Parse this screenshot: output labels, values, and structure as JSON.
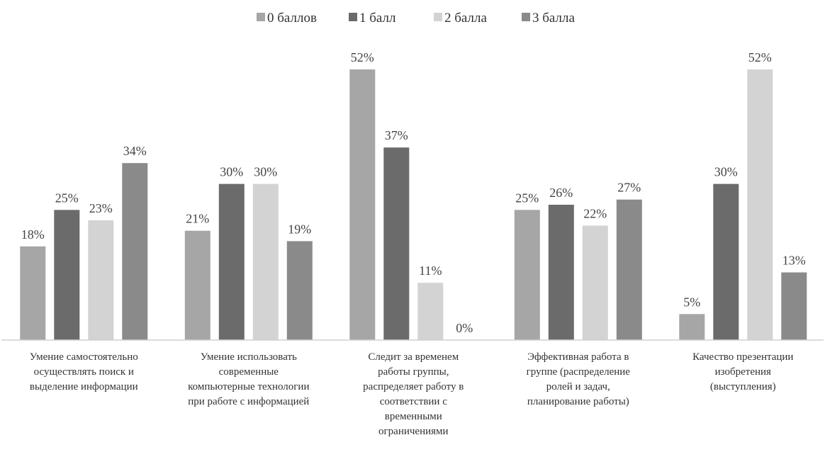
{
  "chart_data": {
    "type": "bar",
    "categories": [
      "Умение самостоятельно осуществлять поиск и выделение информации",
      "Умение использовать современные компьютерные технологии при работе с информацией",
      "Следит за временем работы группы, распределяет работу в соответствии с временными ограничениями",
      "Эффективная работа в группе (распределение ролей и задач, планирование работы)",
      "Качество презентации изобретения (выступления)"
    ],
    "category_lines": [
      [
        "Умение самостоятельно",
        "осуществлять поиск и",
        "выделение информации"
      ],
      [
        "Умение использовать",
        "современные",
        "компьютерные технологии",
        "при работе с информацией"
      ],
      [
        "Следит за временем",
        "работы группы,",
        "распределяет работу в",
        "соответствии с",
        "временными",
        "ограничениями"
      ],
      [
        "Эффективная работа в",
        "группе (распределение",
        "ролей и задач,",
        "планирование работы)"
      ],
      [
        "Качество презентации",
        "изобретения",
        "(выступления)"
      ]
    ],
    "series": [
      {
        "name": "0 баллов",
        "values": [
          18,
          21,
          52,
          25,
          5
        ],
        "color": "#a6a6a6"
      },
      {
        "name": "1 балл",
        "values": [
          25,
          30,
          37,
          26,
          30
        ],
        "color": "#6b6b6b"
      },
      {
        "name": "2 балла",
        "values": [
          23,
          30,
          11,
          22,
          52
        ],
        "color": "#d3d3d3"
      },
      {
        "name": "3 балла",
        "values": [
          34,
          19,
          0,
          27,
          13
        ],
        "color": "#8a8a8a"
      }
    ],
    "value_suffix": "%",
    "ylim": [
      0,
      52
    ],
    "legend_position": "top",
    "grid": false
  }
}
